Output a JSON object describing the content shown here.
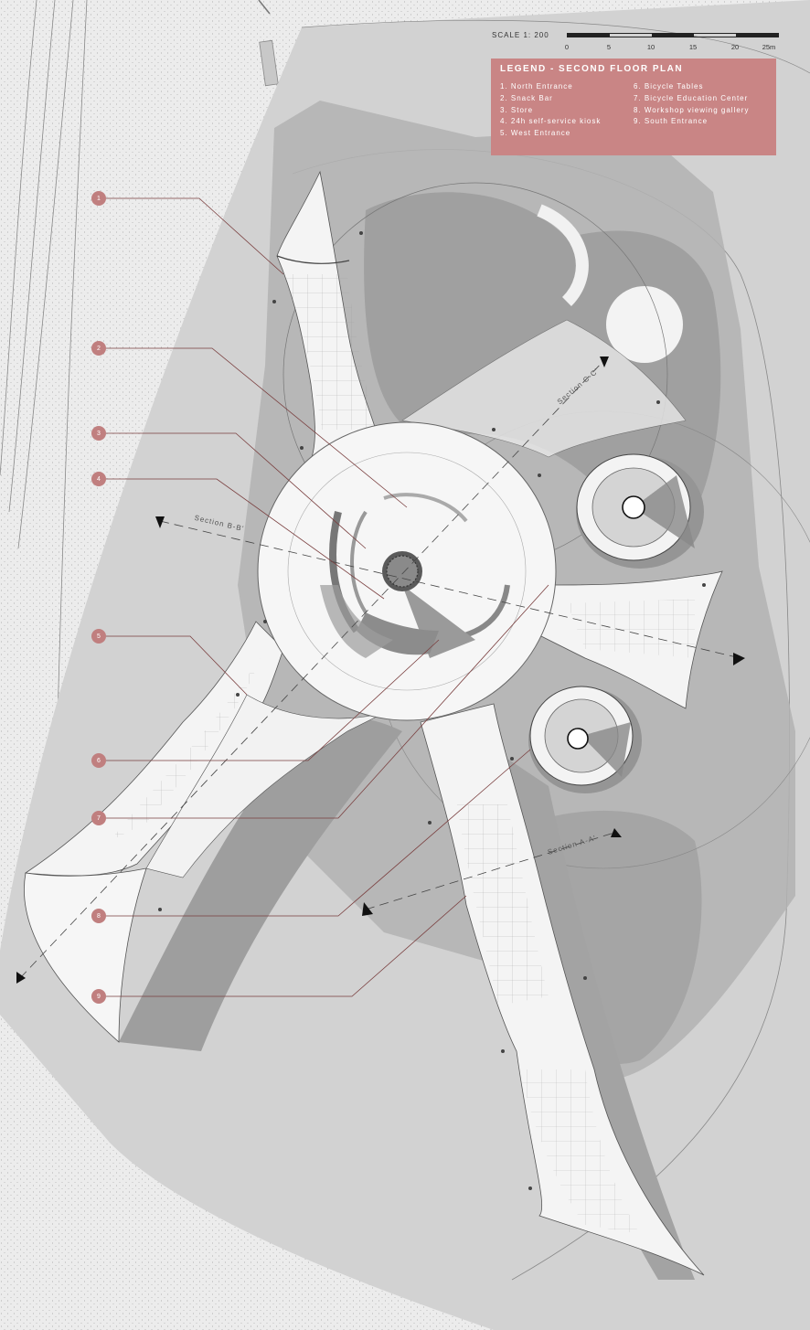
{
  "scale": {
    "title": "SCALE 1: 200",
    "ticks": [
      "0",
      "5",
      "10",
      "15",
      "20",
      "25m"
    ]
  },
  "legend": {
    "title": "LEGEND - SECOND FLOOR PLAN",
    "left_items": [
      "1. North Entrance",
      "2. Snack Bar",
      "3. Store",
      "4. 24h self-service kiosk",
      "5. West Entrance"
    ],
    "right_items": [
      "6. Bicycle Tables",
      "7. Bicycle Education Center",
      "8. Workshop viewing gallery",
      "9. South Entrance"
    ]
  },
  "callouts": [
    "1",
    "2",
    "3",
    "4",
    "5",
    "6",
    "7",
    "8",
    "9"
  ],
  "sections": {
    "bb": "Section B-B'",
    "aa": "Section A-A'",
    "cc": "Section C-C'"
  },
  "colors": {
    "accent": "#c98585",
    "callout": "#c07f7f",
    "shadow": "#a9a9a9",
    "ground": "#e4e4e4"
  }
}
